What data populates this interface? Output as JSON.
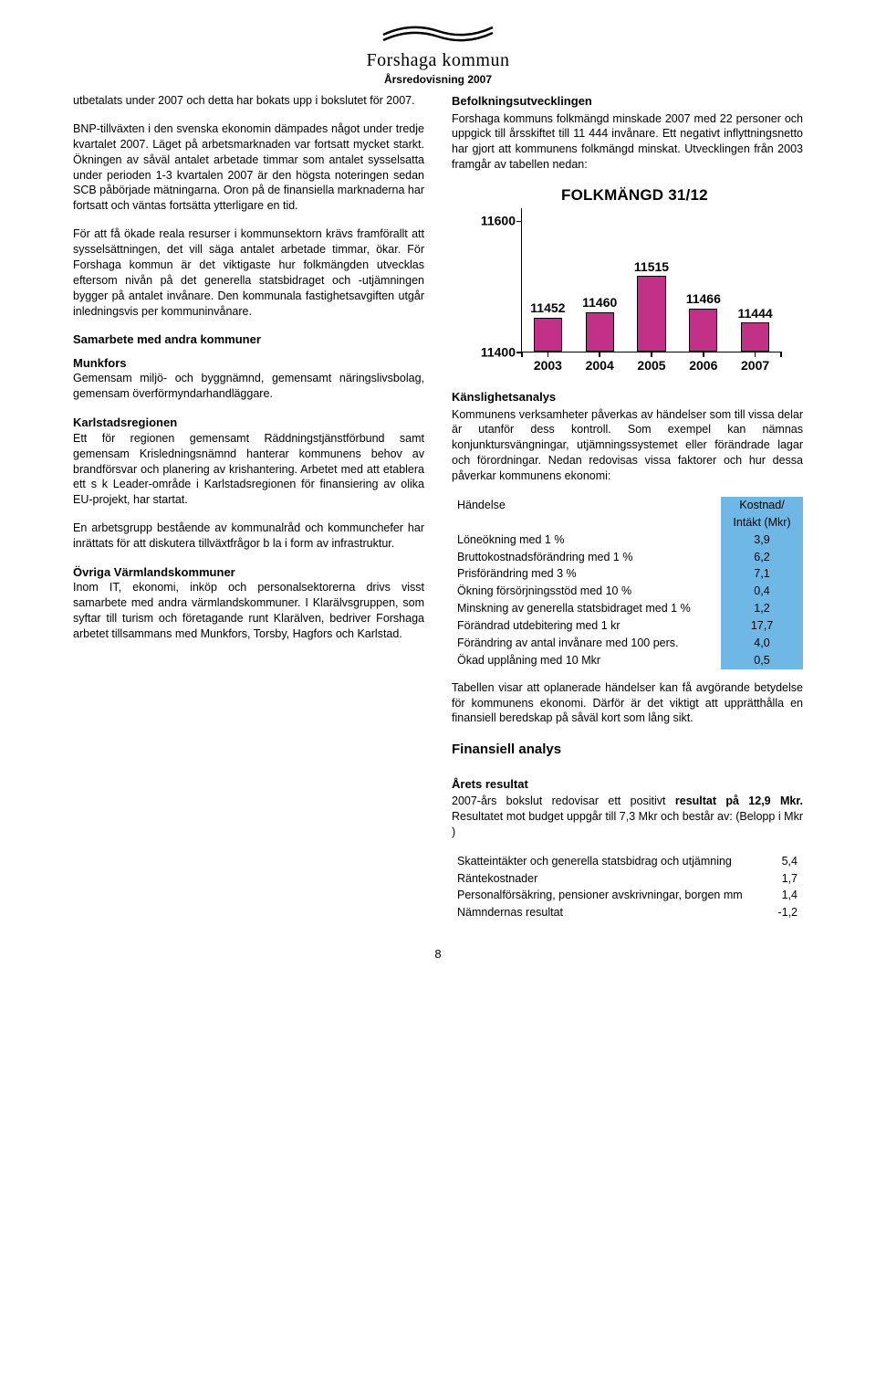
{
  "header": {
    "org": "Forshaga kommun",
    "subtitle": "Årsredovisning 2007"
  },
  "left": {
    "p1": "utbetalats under 2007 och detta har bokats upp i bokslutet för 2007.",
    "p2": "BNP-tillväxten i den svenska ekonomin dämpades något under tredje kvartalet 2007. Läget på arbetsmarknaden var fortsatt mycket starkt. Ökningen av såväl antalet arbetade timmar som antalet sysselsatta under perioden 1-3 kvartalen 2007 är den högsta noteringen sedan SCB påbörjade mätningarna. Oron på de finansiella marknaderna har fortsatt och väntas fortsätta ytterligare en tid.",
    "p3": "För att få ökade reala resurser i kommunsektorn krävs framförallt att sysselsättningen, det vill säga antalet arbetade timmar, ökar. För Forshaga kommun är det viktigaste hur folkmängden utvecklas eftersom nivån på det generella statsbidraget och -utjämningen bygger på antalet invånare. Den kommunala fastighetsavgiften utgår inledningsvis per kommuninvånare.",
    "h_samarbete": "Samarbete med andra kommuner",
    "h_munkfors": "Munkfors",
    "p_munkfors": "Gemensam miljö- och byggnämnd, gemensamt näringslivsbolag, gemensam överförmyndarhandläggare.",
    "h_karlstad": "Karlstadsregionen",
    "p_karlstad1": "Ett för regionen gemensamt Räddningstjänstförbund samt gemensam Krisledningsnämnd hanterar kommunens behov av brandförsvar och planering av krishantering. Arbetet med att etablera ett s k Leader-område i Karlstadsregionen för finansiering av olika EU-projekt, har startat.",
    "p_karlstad2": "En arbetsgrupp bestående av kommunalråd och kommunchefer har inrättats för att diskutera tillväxtfrågor b la i form av infrastruktur.",
    "h_ovriga": "Övriga Värmlandskommuner",
    "p_ovriga": "Inom IT, ekonomi, inköp och personalsektorerna drivs visst samarbete med andra värmlandskommuner. I Klarälvsgruppen, som syftar till turism och företagande runt Klarälven, bedriver Forshaga arbetet tillsammans med Munkfors, Torsby, Hagfors och Karlstad."
  },
  "right": {
    "h_befolk": "Befolkningsutvecklingen",
    "p_befolk": "Forshaga kommuns folkmängd minskade 2007 med 22 personer och uppgick till årsskiftet till 11 444 invånare. Ett negativt inflyttningsnetto har gjort att kommunens folkmängd minskat. Utvecklingen från 2003 framgår av tabellen nedan:",
    "chart": {
      "title": "FOLKMÄNGD 31/12",
      "categories": [
        "2003",
        "2004",
        "2005",
        "2006",
        "2007"
      ],
      "values": [
        11452,
        11460,
        11515,
        11466,
        11444
      ],
      "bar_color": "#c23187",
      "y_ticks": [
        11400,
        11600
      ],
      "ymin": 11400,
      "ymax": 11620,
      "value_labels": [
        "11452",
        "11460",
        "11515",
        "11466",
        "11444"
      ]
    },
    "h_kanslig": "Känslighetsanalys",
    "p_kanslig": "Kommunens verksamheter påverkas av händelser som till vissa delar är utanför dess kontroll. Som exempel kan nämnas konjunktursvängningar, utjämningssystemet eller förändrade lagar och förordningar. Nedan redovisas vissa faktorer och hur dessa påverkar kommunens ekonomi:",
    "sens_table": {
      "header_left": "Händelse",
      "header_right1": "Kostnad/",
      "header_right2": "Intäkt (Mkr)",
      "rows": [
        {
          "label": "Löneökning med 1 %",
          "val": "3,9"
        },
        {
          "label": "Bruttokostnadsförändring med 1 %",
          "val": "6,2"
        },
        {
          "label": "Prisförändring med 3 %",
          "val": "7,1"
        },
        {
          "label": "Ökning försörjningsstöd med 10 %",
          "val": "0,4"
        },
        {
          "label": "Minskning av generella statsbidraget med 1 %",
          "val": "1,2"
        },
        {
          "label": "Förändrad utdebitering med 1 kr",
          "val": "17,7"
        },
        {
          "label": "Förändring av antal invånare med 100 pers.",
          "val": "4,0"
        },
        {
          "label": "Ökad upplåning med 10 Mkr",
          "val": "0,5"
        }
      ]
    },
    "p_tabell": "Tabellen visar att oplanerade händelser kan få avgörande betydelse för kommunens ekonomi. Därför är det viktigt att upprätthålla en finansiell beredskap på såväl kort som lång sikt.",
    "h_fin": "Finansiell analys",
    "h_resultat": "Årets resultat",
    "p_resultat_1a": "2007-års bokslut redovisar ett positivt ",
    "p_resultat_1b": "resultat på 12,9 Mkr.",
    "p_resultat_1c": " Resultatet mot budget uppgår till 7,3 Mkr och består av: (Belopp i Mkr )",
    "res_table": {
      "rows": [
        {
          "label": "Skatteintäkter och generella statsbidrag och utjämning",
          "val": "5,4"
        },
        {
          "label": "Räntekostnader",
          "val": "1,7"
        },
        {
          "label": "Personalförsäkring, pensioner avskrivningar, borgen mm",
          "val": "1,4"
        },
        {
          "label": "Nämndernas resultat",
          "val": "-1,2"
        }
      ]
    }
  },
  "page_number": "8"
}
